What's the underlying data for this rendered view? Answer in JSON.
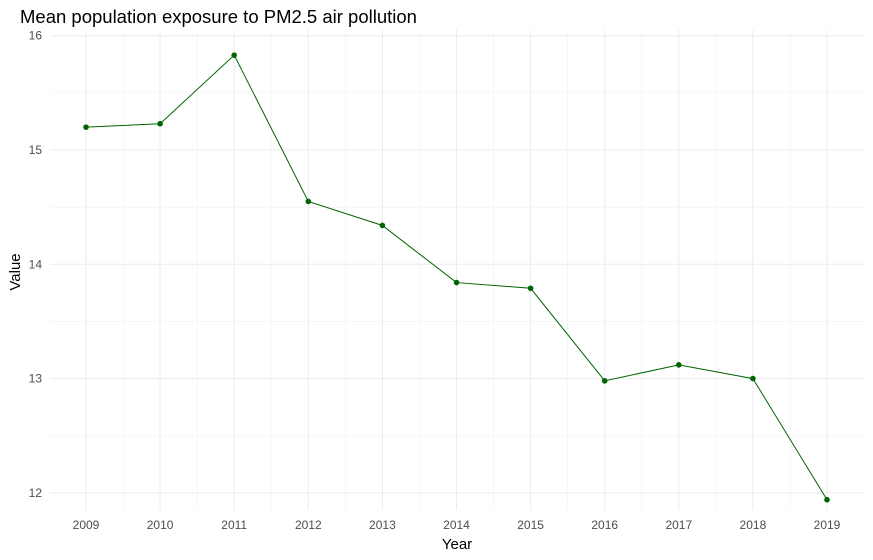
{
  "chart_data": {
    "type": "line",
    "title": "Mean population exposure to PM2.5 air pollution",
    "xlabel": "Year",
    "ylabel": "Value",
    "x": [
      "2009",
      "2010",
      "2011",
      "2012",
      "2013",
      "2014",
      "2015",
      "2016",
      "2017",
      "2018",
      "2019"
    ],
    "series": [
      {
        "values": [
          15.2,
          15.23,
          15.83,
          14.55,
          14.34,
          13.84,
          13.79,
          12.98,
          13.12,
          13.0,
          11.94
        ]
      }
    ],
    "y_ticks": [
      12,
      13,
      14,
      15,
      16
    ],
    "ylim": [
      11.85,
      16.05
    ],
    "grid": true,
    "line_color": "#006400",
    "point_color": "#006400"
  }
}
